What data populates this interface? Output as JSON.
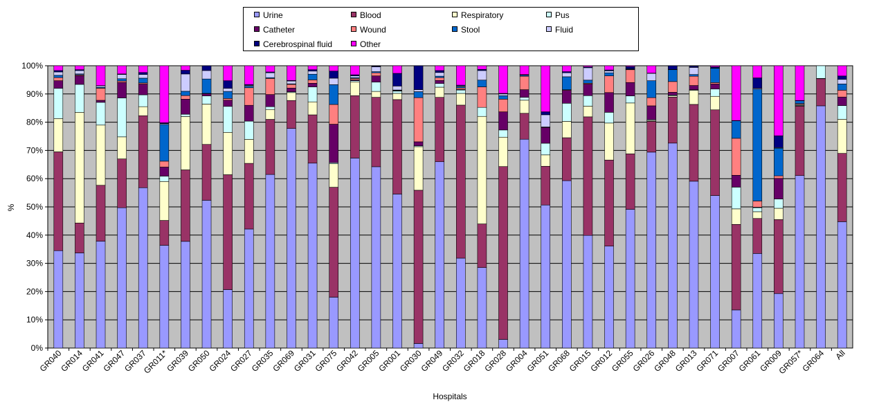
{
  "chart_data": {
    "type": "bar",
    "stacked": true,
    "normalized_percent": true,
    "title": "",
    "xlabel": "Hospitals",
    "ylabel": "%",
    "ylim": [
      0,
      100
    ],
    "yticks": [
      "0%",
      "10%",
      "20%",
      "30%",
      "40%",
      "50%",
      "60%",
      "70%",
      "80%",
      "90%",
      "100%"
    ],
    "grid": "horizontal",
    "legend_position": "top",
    "plot_background": "#c0c0c0",
    "categories": [
      "GR040",
      "GR014",
      "GR041",
      "GR047",
      "GR037",
      "GR011*",
      "GR039",
      "GR050",
      "GR024",
      "GR027",
      "GR035",
      "GR069",
      "GR031",
      "GR075",
      "GR042",
      "GR005",
      "GR001",
      "GR030",
      "GR049",
      "GR032",
      "GR018",
      "GR028",
      "GR004",
      "GR051",
      "GR068",
      "GR015",
      "GR012",
      "GR055",
      "GR026",
      "GR048",
      "GR013",
      "GR071",
      "GR007",
      "GR061",
      "GR009",
      "GR057*",
      "GR064",
      "All"
    ],
    "series": [
      {
        "name": "Urine",
        "color": "#9999ff",
        "values": [
          34.5,
          33.7,
          37.1,
          49.7,
          56.8,
          36.4,
          37.6,
          52.4,
          20.7,
          40.6,
          61.5,
          77.7,
          65.5,
          18.0,
          67.3,
          64.3,
          54.6,
          1.6,
          66.0,
          31.5,
          28.6,
          3.0,
          73.3,
          52.8,
          59.3,
          39.9,
          36.1,
          48.8,
          69.4,
          72.6,
          59.1,
          54.3,
          13.5,
          33.5,
          19.3,
          61.1,
          85.8,
          44.4
        ]
      },
      {
        "name": "Blood",
        "color": "#993366",
        "values": [
          35.0,
          10.6,
          19.4,
          17.3,
          25.5,
          8.8,
          25.2,
          19.8,
          40.7,
          22.4,
          19.5,
          9.9,
          17.1,
          38.9,
          22.1,
          24.6,
          33.5,
          53.8,
          22.8,
          53.6,
          15.5,
          60.0,
          9.1,
          14.3,
          15.2,
          42.0,
          30.5,
          19.5,
          10.9,
          16.3,
          27.2,
          30.5,
          30.3,
          12.4,
          26.2,
          24.6,
          9.6,
          24.0
        ]
      },
      {
        "name": "Respiratory",
        "color": "#ffffcc",
        "values": [
          11.8,
          39.2,
          20.9,
          7.8,
          3.2,
          13.8,
          18.8,
          14.3,
          15.0,
          8.2,
          3.5,
          2.8,
          4.6,
          8.3,
          4.9,
          2.1,
          2.2,
          15.3,
          3.6,
          4.1,
          38.2,
          10.2,
          4.6,
          4.2,
          5.8,
          3.8,
          13.1,
          17.9,
          0.3,
          0.4,
          5.0,
          4.8,
          5.5,
          2.4,
          4.0,
          0.2,
          0.1,
          12.0
        ]
      },
      {
        "name": "Pus",
        "color": "#ccffff",
        "values": [
          10.7,
          9.9,
          7.9,
          13.8,
          4.2,
          1.9,
          0.8,
          2.9,
          9.2,
          6.2,
          1.0,
          0.3,
          5.3,
          0.4,
          0.4,
          3.3,
          0.8,
          0.3,
          1.3,
          1.2,
          3.2,
          2.5,
          1.0,
          4.3,
          6.4,
          3.7,
          3.8,
          2.5,
          0.3,
          0.3,
          0.2,
          2.6,
          7.7,
          1.4,
          3.3,
          0.3,
          4.5,
          4.8
        ]
      },
      {
        "name": "Catheter",
        "color": "#660066",
        "values": [
          2.7,
          3.1,
          0.7,
          5.5,
          3.8,
          3.2,
          5.3,
          0.8,
          2.2,
          5.4,
          4.3,
          1.3,
          1.3,
          13.6,
          0.3,
          2.2,
          0.1,
          1.4,
          1.1,
          0.2,
          0.0,
          6.3,
          2.7,
          5.8,
          4.6,
          4.1,
          7.0,
          4.7,
          4.9,
          1.0,
          1.5,
          1.8,
          4.2,
          0.2,
          7.3,
          0.1,
          0.0,
          3.0
        ]
      },
      {
        "name": "Wound",
        "color": "#ff8080",
        "values": [
          1.1,
          0.3,
          4.2,
          0.5,
          0.4,
          2.1,
          1.3,
          0.1,
          0.6,
          6.0,
          5.7,
          1.3,
          1.2,
          7.0,
          0.5,
          1.1,
          0.1,
          15.5,
          1.0,
          0.5,
          7.3,
          4.4,
          4.7,
          0.1,
          0.2,
          0.3,
          5.9,
          4.5,
          2.9,
          3.8,
          3.3,
          0.5,
          13.1,
          2.2,
          0.9,
          0.3,
          0.0,
          2.4
        ]
      },
      {
        "name": "Stool",
        "color": "#0066cc",
        "values": [
          0.8,
          0.3,
          0.3,
          0.8,
          1.7,
          13.0,
          1.5,
          5.1,
          2.5,
          0.5,
          0.3,
          0.2,
          2.0,
          7.0,
          0.3,
          0.4,
          0.2,
          2.1,
          0.5,
          0.4,
          2.4,
          1.2,
          0.4,
          0.1,
          4.6,
          1.1,
          1.1,
          0.2,
          6.0,
          4.2,
          0.6,
          5.1,
          6.2,
          39.6,
          9.8,
          1.0,
          0.0,
          2.2
        ]
      },
      {
        "name": "Fluid",
        "color": "#ccccff",
        "values": [
          1.2,
          1.2,
          0.5,
          1.5,
          1.3,
          0.3,
          6.1,
          3.0,
          1.1,
          0.3,
          1.7,
          1.0,
          1.1,
          2.3,
          0.6,
          1.7,
          1.4,
          0.7,
          1.3,
          0.3,
          3.4,
          0.6,
          0.1,
          4.5,
          1.4,
          4.4,
          0.7,
          0.1,
          2.6,
          0.1,
          2.5,
          0.1,
          0.0,
          0.3,
          0.2,
          0.0,
          0.0,
          1.6
        ]
      },
      {
        "name": "Cerebrospinal fluid",
        "color": "#000080",
        "values": [
          0.5,
          0.3,
          0.1,
          0.2,
          0.7,
          0.3,
          1.3,
          1.7,
          2.7,
          0.3,
          0.3,
          0.2,
          0.5,
          2.5,
          0.4,
          0.3,
          4.5,
          8.4,
          0.7,
          0.3,
          0.4,
          0.2,
          0.1,
          1.1,
          0.4,
          0.3,
          0.3,
          0.8,
          0.1,
          1.3,
          0.5,
          0.4,
          0.1,
          3.7,
          4.2,
          0.1,
          0.0,
          1.2
        ]
      },
      {
        "name": "Other",
        "color": "#ff00ff",
        "values": [
          1.7,
          1.4,
          6.9,
          2.9,
          2.4,
          20.2,
          1.6,
          0.0,
          5.3,
          6.4,
          2.2,
          5.2,
          1.4,
          1.9,
          3.2,
          0.1,
          2.7,
          0.0,
          1.7,
          6.8,
          1.3,
          9.6,
          3.1,
          17.0,
          2.1,
          0.4,
          1.5,
          0.3,
          2.6,
          0.0,
          0.1,
          0.4,
          19.4,
          4.3,
          24.8,
          12.3,
          0.0,
          3.6
        ]
      }
    ]
  }
}
